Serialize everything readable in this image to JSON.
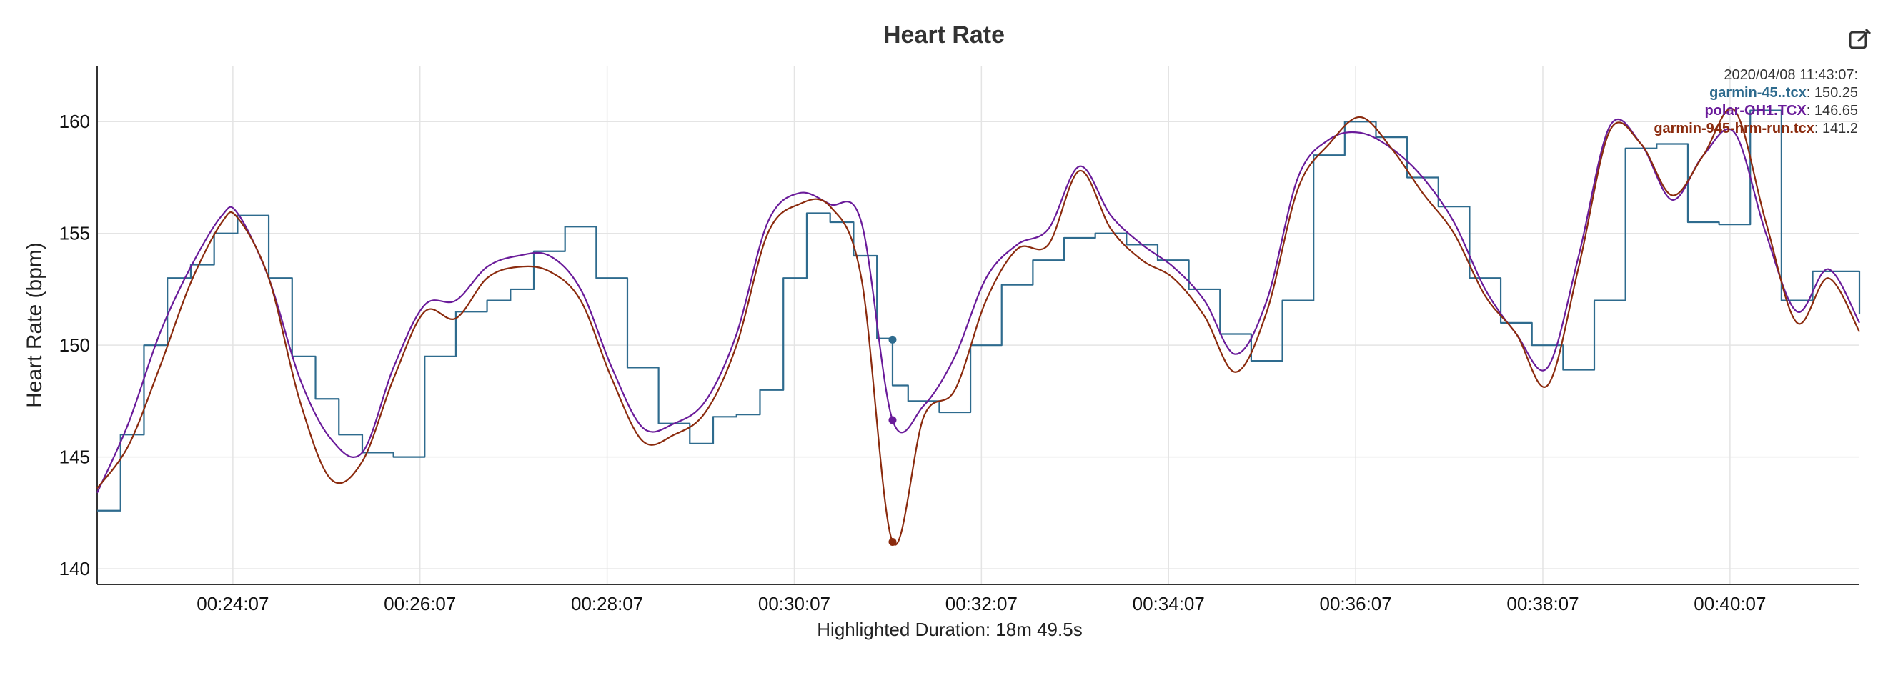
{
  "chart_data": {
    "type": "line",
    "title": "Heart Rate",
    "ylabel": "Heart Rate (bpm)",
    "xlabel": "Highlighted Duration: 18m 49.5s",
    "x_unit": "elapsed time (mm:ss)",
    "xlim": [
      "22:40",
      "41:30"
    ],
    "ylim": [
      139.3,
      162.5
    ],
    "yticks": [
      140,
      145,
      150,
      155,
      160
    ],
    "xticks": [
      "24:07",
      "26:07",
      "28:07",
      "30:07",
      "32:07",
      "34:07",
      "36:07",
      "38:07",
      "40:07"
    ],
    "xtick_labels": [
      "00:24:07",
      "00:26:07",
      "00:28:07",
      "00:30:07",
      "00:32:07",
      "00:34:07",
      "00:36:07",
      "00:38:07",
      "00:40:07"
    ],
    "grid": true,
    "series": [
      {
        "name": "garmin-45..tcx",
        "color": "#2e6b8e",
        "step": true,
        "x": [
          "22:40",
          "22:55",
          "23:10",
          "23:25",
          "23:40",
          "23:55",
          "24:10",
          "24:30",
          "24:45",
          "25:00",
          "25:15",
          "25:30",
          "25:50",
          "26:10",
          "26:30",
          "26:50",
          "27:05",
          "27:20",
          "27:40",
          "28:00",
          "28:20",
          "28:40",
          "29:00",
          "29:15",
          "29:30",
          "29:45",
          "30:00",
          "30:15",
          "30:30",
          "30:45",
          "31:00",
          "31:10",
          "31:20",
          "31:40",
          "32:00",
          "32:20",
          "32:40",
          "33:00",
          "33:20",
          "33:40",
          "34:00",
          "34:20",
          "34:40",
          "35:00",
          "35:20",
          "35:40",
          "36:00",
          "36:20",
          "36:40",
          "37:00",
          "37:20",
          "37:40",
          "38:00",
          "38:20",
          "38:40",
          "39:00",
          "39:20",
          "39:40",
          "40:00",
          "40:20",
          "40:40",
          "41:00",
          "41:30"
        ],
        "values": [
          142.6,
          146.0,
          150.0,
          153.0,
          153.6,
          155.0,
          155.8,
          153.0,
          149.5,
          147.6,
          146.0,
          145.2,
          145.0,
          149.5,
          151.5,
          152.0,
          152.5,
          154.2,
          155.3,
          153.0,
          149.0,
          146.5,
          145.6,
          146.8,
          146.9,
          148.0,
          153.0,
          155.9,
          155.5,
          154.0,
          150.3,
          148.2,
          147.5,
          147.0,
          150.0,
          152.7,
          153.8,
          154.8,
          155.0,
          154.5,
          153.8,
          152.5,
          150.5,
          149.3,
          152.0,
          158.5,
          160.0,
          159.3,
          157.5,
          156.2,
          153.0,
          151.0,
          150.0,
          148.9,
          152.0,
          158.8,
          159.0,
          155.5,
          155.4,
          160.5,
          152.0,
          153.3,
          151.4
        ]
      },
      {
        "name": "polar-OH1.TCX",
        "color": "#6a1b9a",
        "step": false,
        "x": [
          "22:40",
          "23:00",
          "23:20",
          "23:40",
          "24:00",
          "24:10",
          "24:30",
          "24:50",
          "25:10",
          "25:30",
          "25:50",
          "26:10",
          "26:30",
          "26:50",
          "27:10",
          "27:30",
          "27:50",
          "28:10",
          "28:30",
          "28:50",
          "29:10",
          "29:30",
          "29:50",
          "30:10",
          "30:30",
          "30:50",
          "31:10",
          "31:30",
          "31:50",
          "32:10",
          "32:30",
          "32:50",
          "33:10",
          "33:30",
          "33:50",
          "34:10",
          "34:30",
          "34:50",
          "35:10",
          "35:30",
          "35:50",
          "36:10",
          "36:30",
          "36:50",
          "37:10",
          "37:30",
          "37:50",
          "38:10",
          "38:30",
          "38:50",
          "39:10",
          "39:30",
          "39:50",
          "40:10",
          "40:30",
          "40:50",
          "41:10",
          "41:30"
        ],
        "values": [
          143.4,
          146.5,
          150.5,
          153.5,
          155.8,
          155.9,
          153.0,
          148.5,
          145.8,
          145.2,
          149.0,
          151.8,
          152.0,
          153.5,
          154.0,
          154.0,
          152.5,
          149.0,
          146.3,
          146.5,
          147.5,
          150.5,
          155.5,
          156.8,
          156.3,
          155.5,
          146.65,
          147.3,
          149.5,
          153.0,
          154.5,
          155.2,
          158.0,
          155.8,
          154.5,
          153.5,
          152.0,
          149.6,
          152.0,
          157.5,
          159.2,
          159.5,
          158.8,
          157.5,
          155.5,
          152.5,
          150.5,
          149.0,
          154.0,
          159.8,
          159.0,
          156.5,
          158.5,
          159.5,
          155.0,
          151.5,
          153.4,
          151.0
        ]
      },
      {
        "name": "garmin-945-hrm-run.tcx",
        "color": "#8b2b0e",
        "step": false,
        "x": [
          "22:40",
          "23:00",
          "23:20",
          "23:40",
          "24:00",
          "24:10",
          "24:30",
          "24:50",
          "25:10",
          "25:30",
          "25:50",
          "26:10",
          "26:30",
          "26:50",
          "27:10",
          "27:30",
          "27:50",
          "28:10",
          "28:30",
          "28:50",
          "29:10",
          "29:30",
          "29:50",
          "30:10",
          "30:30",
          "30:50",
          "31:10",
          "31:30",
          "31:50",
          "32:10",
          "32:30",
          "32:50",
          "33:10",
          "33:30",
          "33:50",
          "34:10",
          "34:30",
          "34:50",
          "35:10",
          "35:30",
          "35:50",
          "36:10",
          "36:30",
          "36:50",
          "37:10",
          "37:30",
          "37:50",
          "38:10",
          "38:30",
          "38:50",
          "39:10",
          "39:30",
          "39:50",
          "40:10",
          "40:30",
          "40:50",
          "41:10",
          "41:30"
        ],
        "values": [
          143.6,
          145.5,
          149.0,
          152.8,
          155.5,
          155.7,
          153.0,
          147.5,
          144.0,
          144.8,
          148.5,
          151.5,
          151.2,
          153.0,
          153.5,
          153.3,
          152.0,
          148.5,
          145.7,
          146.0,
          147.0,
          150.0,
          155.0,
          156.3,
          156.2,
          153.0,
          141.2,
          146.8,
          148.0,
          152.0,
          154.3,
          154.5,
          157.8,
          155.2,
          153.8,
          153.0,
          151.3,
          148.8,
          151.5,
          157.0,
          159.0,
          160.2,
          158.8,
          156.8,
          155.0,
          152.2,
          150.5,
          148.2,
          153.5,
          159.6,
          159.0,
          156.7,
          158.5,
          160.5,
          155.5,
          151.0,
          153.0,
          150.6
        ]
      }
    ],
    "highlight": {
      "x": "31:10",
      "label": "2020/04/08 11:43:07:",
      "values": [
        {
          "series": "garmin-45..tcx",
          "value": "150.25"
        },
        {
          "series": "polar-OH1.TCX",
          "value": "146.65"
        },
        {
          "series": "garmin-945-hrm-run.tcx",
          "value": "141.2"
        }
      ]
    }
  },
  "toolbar": {
    "edit_icon": "edit-icon"
  }
}
